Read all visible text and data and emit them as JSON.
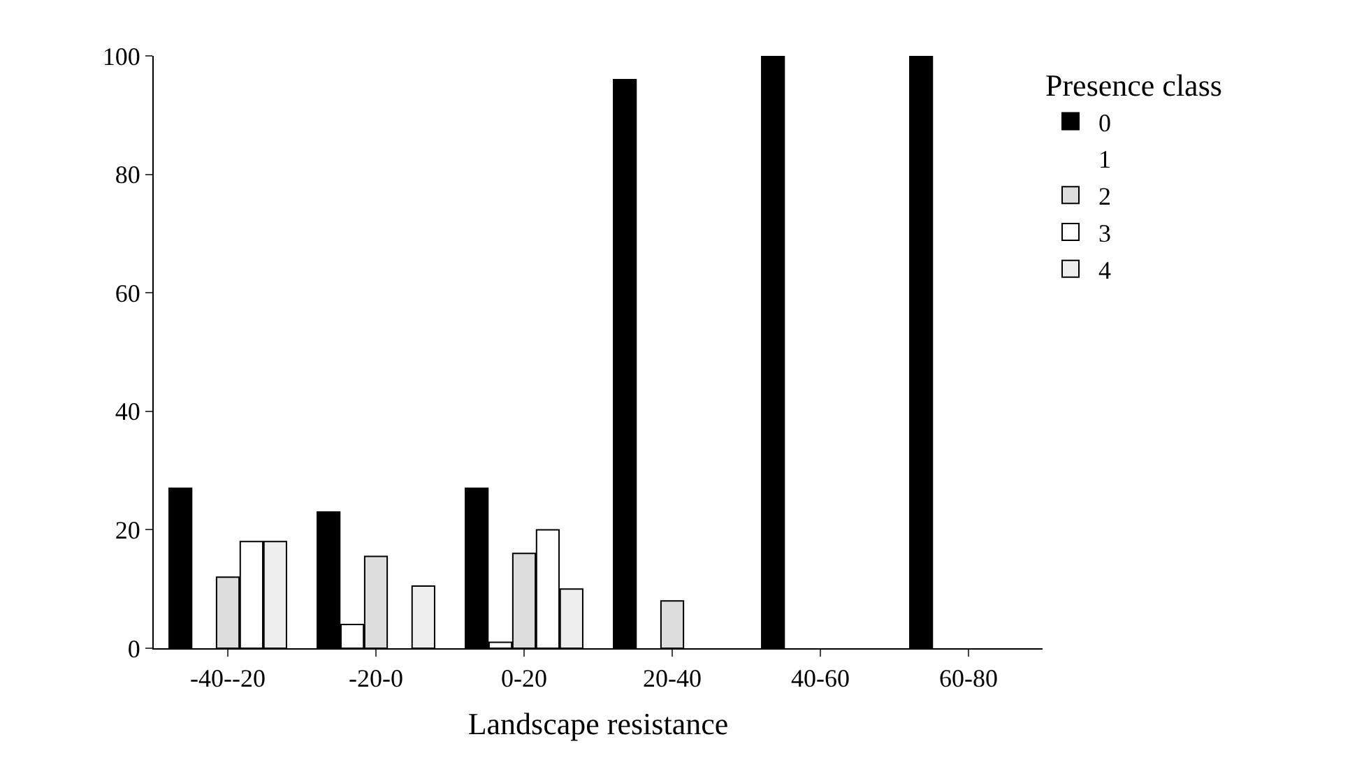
{
  "chart_data": {
    "type": "bar",
    "xlabel": "Landscape resistance",
    "legend_title": "Presence class",
    "categories": [
      "-40--20",
      "-20-0",
      "0-20",
      "20-40",
      "40-60",
      "60-80"
    ],
    "series": [
      {
        "name": "0",
        "color": "#000000",
        "values": [
          27,
          23,
          27,
          96,
          100,
          100
        ]
      },
      {
        "name": "1",
        "color": "#ffffff",
        "values": [
          0,
          4,
          1,
          0,
          0,
          0
        ]
      },
      {
        "name": "2",
        "color": "#dddddd",
        "values": [
          12,
          15.5,
          16,
          8,
          0,
          0
        ]
      },
      {
        "name": "3",
        "color": "#ffffff",
        "values": [
          18,
          0,
          20,
          0,
          0,
          0
        ]
      },
      {
        "name": "4",
        "color": "#eeeeee",
        "values": [
          18,
          10.5,
          10,
          0,
          0,
          0
        ]
      }
    ],
    "ylim": [
      0,
      100
    ],
    "yticks": [
      0,
      20,
      40,
      60,
      80,
      100
    ],
    "grid": false,
    "legend": "top right"
  }
}
